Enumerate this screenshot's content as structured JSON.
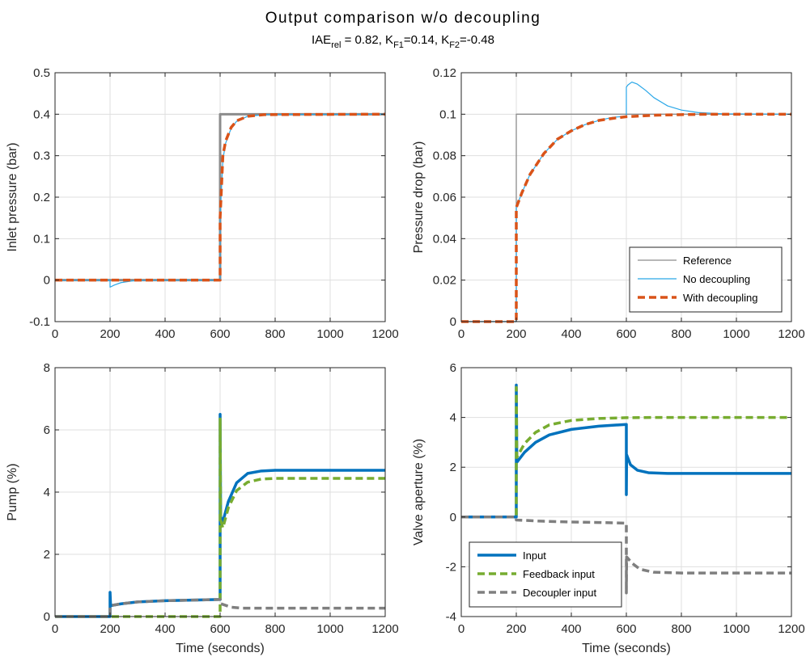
{
  "title": "Output comparison w/o decoupling",
  "subtitle": {
    "pre": "IAE",
    "sub1": "rel",
    "mid1": " = 0.82, K",
    "sub2": "F1",
    "mid2": "=0.14, K",
    "sub3": "F2",
    "post": "=-0.48"
  },
  "chart_data": [
    {
      "type": "line",
      "ylabel": "Inlet pressure (bar)",
      "xlabel": "",
      "xlim": [
        0,
        1200
      ],
      "ylim": [
        -0.1,
        0.5
      ],
      "xticks": [
        0,
        200,
        400,
        600,
        800,
        1000,
        1200
      ],
      "yticks": [
        -0.1,
        0,
        0.1,
        0.2,
        0.3,
        0.4,
        0.5
      ],
      "grid": true,
      "legend": "none",
      "series": [
        {
          "name": "Reference",
          "color": "#8c8c8c",
          "style": "solid",
          "points": [
            [
              0,
              0
            ],
            [
              600,
              0
            ],
            [
              600,
              0.4
            ],
            [
              1200,
              0.4
            ]
          ]
        },
        {
          "name": "No decoupling",
          "color": "#2aa7e8",
          "style": "solid",
          "points": [
            [
              0,
              0
            ],
            [
              200,
              0
            ],
            [
              200,
              -0.017
            ],
            [
              215,
              -0.012
            ],
            [
              240,
              -0.006
            ],
            [
              280,
              -0.002
            ],
            [
              330,
              0
            ],
            [
              600,
              0
            ],
            [
              600,
              0.15
            ],
            [
              610,
              0.29
            ],
            [
              620,
              0.33
            ],
            [
              640,
              0.366
            ],
            [
              660,
              0.383
            ],
            [
              700,
              0.395
            ],
            [
              760,
              0.399
            ],
            [
              1200,
              0.4
            ]
          ]
        },
        {
          "name": "With decoupling",
          "color": "#d95319",
          "style": "dashed",
          "points": [
            [
              0,
              0
            ],
            [
              600,
              0
            ],
            [
              600,
              0.15
            ],
            [
              610,
              0.3
            ],
            [
              620,
              0.335
            ],
            [
              640,
              0.368
            ],
            [
              660,
              0.384
            ],
            [
              700,
              0.395
            ],
            [
              760,
              0.399
            ],
            [
              1200,
              0.4
            ]
          ]
        }
      ]
    },
    {
      "type": "line",
      "ylabel": "Pressure drop (bar)",
      "xlabel": "",
      "xlim": [
        0,
        1200
      ],
      "ylim": [
        0,
        0.12
      ],
      "xticks": [
        0,
        200,
        400,
        600,
        800,
        1000,
        1200
      ],
      "yticks": [
        0,
        0.02,
        0.04,
        0.06,
        0.08,
        0.1,
        0.12
      ],
      "grid": true,
      "legend": "bottom-right",
      "series": [
        {
          "name": "Reference",
          "color": "#8c8c8c",
          "style": "solid",
          "points": [
            [
              0,
              0
            ],
            [
              200,
              0
            ],
            [
              200,
              0.1
            ],
            [
              1200,
              0.1
            ]
          ]
        },
        {
          "name": "No decoupling",
          "color": "#2aa7e8",
          "style": "solid",
          "points": [
            [
              0,
              0
            ],
            [
              200,
              0
            ],
            [
              200,
              0.055
            ],
            [
              220,
              0.062
            ],
            [
              250,
              0.071
            ],
            [
              300,
              0.081
            ],
            [
              350,
              0.088
            ],
            [
              400,
              0.092
            ],
            [
              450,
              0.095
            ],
            [
              500,
              0.097
            ],
            [
              550,
              0.0985
            ],
            [
              600,
              0.099
            ],
            [
              600,
              0.113
            ],
            [
              605,
              0.114
            ],
            [
              620,
              0.1155
            ],
            [
              640,
              0.1145
            ],
            [
              670,
              0.1115
            ],
            [
              700,
              0.108
            ],
            [
              750,
              0.104
            ],
            [
              800,
              0.102
            ],
            [
              860,
              0.1008
            ],
            [
              950,
              0.1002
            ],
            [
              1200,
              0.1
            ]
          ]
        },
        {
          "name": "With decoupling",
          "color": "#d95319",
          "style": "dashed",
          "points": [
            [
              0,
              0
            ],
            [
              200,
              0
            ],
            [
              200,
              0.055
            ],
            [
              220,
              0.062
            ],
            [
              250,
              0.071
            ],
            [
              300,
              0.081
            ],
            [
              350,
              0.088
            ],
            [
              400,
              0.092
            ],
            [
              450,
              0.095
            ],
            [
              500,
              0.097
            ],
            [
              550,
              0.098
            ],
            [
              600,
              0.0988
            ],
            [
              700,
              0.0995
            ],
            [
              800,
              0.0998
            ],
            [
              900,
              0.1
            ],
            [
              1200,
              0.1
            ]
          ]
        }
      ]
    },
    {
      "type": "line",
      "ylabel": "Pump (%)",
      "xlabel": "Time (seconds)",
      "xlim": [
        0,
        1200
      ],
      "ylim": [
        0,
        8
      ],
      "xticks": [
        0,
        200,
        400,
        600,
        800,
        1000,
        1200
      ],
      "yticks": [
        0,
        2,
        4,
        6,
        8
      ],
      "grid": true,
      "legend": "none",
      "series": [
        {
          "name": "Input",
          "color": "#0072bd",
          "style": "solid-thick",
          "points": [
            [
              0,
              0
            ],
            [
              200,
              0
            ],
            [
              200,
              0.78
            ],
            [
              202,
              0.35
            ],
            [
              240,
              0.41
            ],
            [
              300,
              0.47
            ],
            [
              400,
              0.51
            ],
            [
              500,
              0.53
            ],
            [
              600,
              0.55
            ],
            [
              600,
              6.5
            ],
            [
              602,
              3.2
            ],
            [
              610,
              3.05
            ],
            [
              630,
              3.7
            ],
            [
              660,
              4.3
            ],
            [
              700,
              4.6
            ],
            [
              750,
              4.68
            ],
            [
              800,
              4.7
            ],
            [
              1200,
              4.7
            ]
          ]
        },
        {
          "name": "Feedback input",
          "color": "#77ac30",
          "style": "dashed",
          "points": [
            [
              0,
              0
            ],
            [
              600,
              0
            ],
            [
              600,
              6.35
            ],
            [
              602,
              3.1
            ],
            [
              610,
              2.85
            ],
            [
              630,
              3.5
            ],
            [
              660,
              4.05
            ],
            [
              700,
              4.32
            ],
            [
              750,
              4.42
            ],
            [
              800,
              4.44
            ],
            [
              1200,
              4.44
            ]
          ]
        },
        {
          "name": "Decoupler input",
          "color": "#7f7f7f",
          "style": "dashed",
          "points": [
            [
              0,
              0
            ],
            [
              200,
              0
            ],
            [
              200,
              0.35
            ],
            [
              240,
              0.41
            ],
            [
              300,
              0.47
            ],
            [
              400,
              0.51
            ],
            [
              500,
              0.53
            ],
            [
              600,
              0.55
            ],
            [
              600,
              0.42
            ],
            [
              640,
              0.3
            ],
            [
              680,
              0.27
            ],
            [
              1200,
              0.27
            ]
          ]
        }
      ]
    },
    {
      "type": "line",
      "ylabel": "Valve aperture (%)",
      "xlabel": "Time (seconds)",
      "xlim": [
        0,
        1200
      ],
      "ylim": [
        -4,
        6
      ],
      "xticks": [
        0,
        200,
        400,
        600,
        800,
        1000,
        1200
      ],
      "yticks": [
        -4,
        -2,
        0,
        2,
        4,
        6
      ],
      "grid": true,
      "legend": "bottom-left",
      "series": [
        {
          "name": "Input",
          "color": "#0072bd",
          "style": "solid-thick",
          "points": [
            [
              0,
              0
            ],
            [
              200,
              0
            ],
            [
              200,
              5.3
            ],
            [
              202,
              2.2
            ],
            [
              230,
              2.6
            ],
            [
              270,
              3.0
            ],
            [
              320,
              3.3
            ],
            [
              400,
              3.52
            ],
            [
              500,
              3.65
            ],
            [
              600,
              3.72
            ],
            [
              600,
              0.9
            ],
            [
              601,
              2.5
            ],
            [
              615,
              2.1
            ],
            [
              640,
              1.88
            ],
            [
              680,
              1.78
            ],
            [
              750,
              1.75
            ],
            [
              1200,
              1.75
            ]
          ]
        },
        {
          "name": "Feedback input",
          "color": "#77ac30",
          "style": "dashed",
          "points": [
            [
              0,
              0
            ],
            [
              200,
              0
            ],
            [
              200,
              5.2
            ],
            [
              202,
              2.4
            ],
            [
              230,
              2.95
            ],
            [
              270,
              3.4
            ],
            [
              320,
              3.7
            ],
            [
              400,
              3.88
            ],
            [
              500,
              3.96
            ],
            [
              600,
              3.99
            ],
            [
              700,
              4.0
            ],
            [
              1200,
              4.0
            ]
          ]
        },
        {
          "name": "Decoupler input",
          "color": "#7f7f7f",
          "style": "dashed",
          "points": [
            [
              0,
              0
            ],
            [
              200,
              0
            ],
            [
              200,
              -0.12
            ],
            [
              300,
              -0.17
            ],
            [
              400,
              -0.2
            ],
            [
              500,
              -0.22
            ],
            [
              600,
              -0.25
            ],
            [
              600,
              -3.05
            ],
            [
              601,
              -1.6
            ],
            [
              620,
              -1.85
            ],
            [
              650,
              -2.1
            ],
            [
              700,
              -2.22
            ],
            [
              800,
              -2.25
            ],
            [
              1200,
              -2.25
            ]
          ]
        }
      ]
    }
  ]
}
